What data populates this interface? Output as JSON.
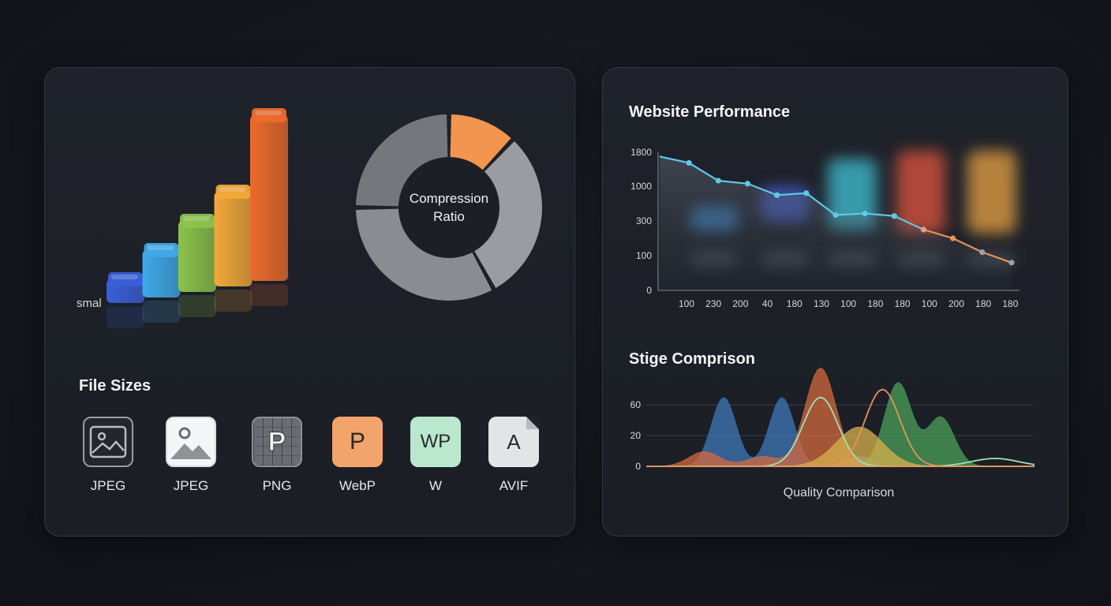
{
  "left_panel": {
    "small_label": "smal",
    "donut_label_line1": "Compression",
    "donut_label_line2": "Ratio",
    "file_sizes_title": "File Sizes",
    "formats": [
      {
        "label": "JPEG",
        "icon": "image-frame-icon",
        "glyph": ""
      },
      {
        "label": "JPEG",
        "icon": "image-icon",
        "glyph": ""
      },
      {
        "label": "PNG",
        "icon": "png-grid-icon",
        "glyph": "P"
      },
      {
        "label": "WebP",
        "icon": "webp-icon",
        "glyph": "P"
      },
      {
        "label": "W",
        "icon": "wp-icon",
        "glyph": "WP"
      },
      {
        "label": "AVIF",
        "icon": "avif-file-icon",
        "glyph": "A"
      }
    ]
  },
  "colors": {
    "panel_bg": "#1e2128",
    "bar_blue": "#3a5fd8",
    "bar_lightblue": "#3fa9e8",
    "bar_green": "#8bc34a",
    "bar_yellow": "#f2a83a",
    "bar_orange": "#ec6a2c",
    "line": "#5ec8e5",
    "line_tail": "#e8925a",
    "donut_accent": "#f2954e",
    "donut_gray": "#8d8f95"
  },
  "chart_data": [
    {
      "type": "bar",
      "title": "",
      "categories": [
        "",
        "",
        "",
        "",
        ""
      ],
      "values": [
        1,
        2,
        3,
        4,
        7
      ],
      "annotations": [
        "smal"
      ]
    },
    {
      "type": "pie",
      "title": "Compression Ratio",
      "values": [
        12,
        30,
        33,
        25
      ]
    },
    {
      "type": "line",
      "title": "Website Performance",
      "x_ticks": [
        "100",
        "230",
        "200",
        "40",
        "180",
        "130",
        "100",
        "180",
        "180",
        "100",
        "200",
        "180",
        "180"
      ],
      "y_ticks": [
        "1800",
        "1000",
        "300",
        "100",
        "0"
      ],
      "y_tick_values": [
        1800,
        1000,
        300,
        100,
        0
      ],
      "values": [
        1700,
        1550,
        1130,
        1060,
        820,
        860,
        420,
        450,
        400,
        250,
        200,
        120,
        80
      ],
      "grid": false
    },
    {
      "type": "area",
      "title": "Stige Comprison",
      "xlabel": "Quality Comparison",
      "y_ticks": [
        "60",
        "20",
        "0"
      ],
      "grid": true,
      "series": [
        {
          "color": "#3d78b8",
          "peaks": [
            [
              0.2,
              70
            ],
            [
              0.35,
              70
            ],
            [
              0.55,
              10
            ]
          ]
        },
        {
          "color": "#d36a3e",
          "peaks": [
            [
              0.15,
              15
            ],
            [
              0.45,
              100
            ],
            [
              0.3,
              10
            ]
          ]
        },
        {
          "color": "#4aa05a",
          "peaks": [
            [
              0.65,
              85
            ],
            [
              0.76,
              50
            ]
          ]
        },
        {
          "color": "#d8b24c",
          "peaks": [
            [
              0.55,
              40
            ]
          ]
        },
        {
          "color": "#9fe0b8",
          "peaks": [
            [
              0.45,
              70
            ],
            [
              0.9,
              8
            ]
          ]
        },
        {
          "color": "#e8925a",
          "peaks": [
            [
              0.61,
              78
            ]
          ]
        }
      ]
    }
  ],
  "right_panel": {
    "perf_title": "Website Performance",
    "stage_title": "Stige Comprison",
    "quality_label": "Quality Comparison"
  }
}
